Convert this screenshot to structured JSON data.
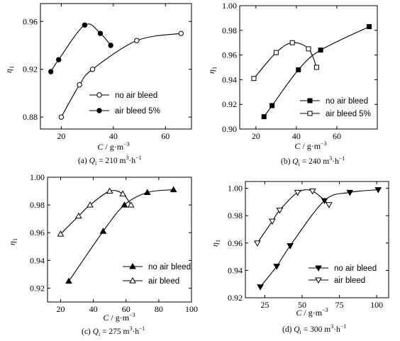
{
  "chart_data": [
    {
      "type": "line",
      "caption": "(a) Q_i = 210 m³·h⁻¹",
      "caption_parts": {
        "prefix": "(a) ",
        "var": "Q",
        "sub": "i",
        "value": " = 210 m",
        "unit_tail": "·h"
      },
      "xlabel": "C / g·m⁻³",
      "ylabel": "η₁",
      "xlim": [
        12,
        70
      ],
      "ylim": [
        0.87,
        0.975
      ],
      "xticks": [
        20,
        40,
        60
      ],
      "yticks": [
        0.88,
        0.92,
        0.96
      ],
      "ytick_labels": [
        "0.88",
        "0.92",
        "0.96"
      ],
      "legend_position": "lower-right",
      "series": [
        {
          "name": "no air bleed",
          "marker": "circle-open",
          "x": [
            20,
            27,
            32,
            49,
            66
          ],
          "y": [
            0.88,
            0.907,
            0.92,
            0.944,
            0.95
          ]
        },
        {
          "name": "air bleed 5%",
          "marker": "circle-filled",
          "x": [
            16,
            19,
            29,
            35,
            39
          ],
          "y": [
            0.918,
            0.928,
            0.957,
            0.95,
            0.94
          ]
        }
      ]
    },
    {
      "type": "line",
      "caption": "(b) Q_i = 240 m³·h⁻¹",
      "caption_parts": {
        "prefix": "(b) ",
        "var": "Q",
        "sub": "i",
        "value": " = 240 m",
        "unit_tail": "·h"
      },
      "xlabel": "C / g·m⁻³",
      "ylabel": "η₁",
      "xlim": [
        12,
        80
      ],
      "ylim": [
        0.9,
        1.0
      ],
      "xticks": [
        20,
        40,
        60
      ],
      "yticks": [
        0.9,
        0.92,
        0.94,
        0.96,
        0.98,
        1.0
      ],
      "ytick_labels": [
        "0.90",
        "0.92",
        "0.94",
        "0.96",
        "0.98",
        "1.00"
      ],
      "legend_position": "lower-right",
      "series": [
        {
          "name": "no air bleed",
          "marker": "square-filled",
          "x": [
            24,
            28,
            41,
            52,
            76
          ],
          "y": [
            0.91,
            0.919,
            0.948,
            0.964,
            0.983
          ]
        },
        {
          "name": "air bleed 5%",
          "marker": "square-open",
          "x": [
            19,
            30,
            38,
            46,
            50
          ],
          "y": [
            0.941,
            0.962,
            0.97,
            0.965,
            0.95
          ]
        }
      ]
    },
    {
      "type": "line",
      "caption": "(c) Q_i = 275 m³·h⁻¹",
      "caption_parts": {
        "prefix": "(c) ",
        "var": "Q",
        "sub": "i",
        "value": " = 275 m",
        "unit_tail": "·h"
      },
      "xlabel": "C / g·m⁻³",
      "ylabel": "η₁",
      "xlim": [
        12,
        100
      ],
      "ylim": [
        0.91,
        1.0
      ],
      "xticks": [
        20,
        40,
        60,
        80,
        100
      ],
      "yticks": [
        0.92,
        0.94,
        0.96,
        0.98,
        1.0
      ],
      "ytick_labels": [
        "0.92",
        "0.94",
        "0.96",
        "0.98",
        "1.00"
      ],
      "legend_position": "lower-right",
      "series": [
        {
          "name": "no air bleed",
          "marker": "triangle-filled",
          "x": [
            25,
            46,
            59,
            73,
            89
          ],
          "y": [
            0.925,
            0.961,
            0.98,
            0.989,
            0.991
          ]
        },
        {
          "name": "air bleed",
          "marker": "triangle-open",
          "x": [
            20,
            31,
            38,
            50,
            58,
            63
          ],
          "y": [
            0.959,
            0.972,
            0.98,
            0.99,
            0.988,
            0.98
          ]
        }
      ]
    },
    {
      "type": "line",
      "caption": "(d) Q_i = 300 m³·h⁻¹",
      "caption_parts": {
        "prefix": "(d) ",
        "var": "Q",
        "sub": "i",
        "value": " = 300 m",
        "unit_tail": "·h"
      },
      "xlabel": "C / g·m⁻³",
      "ylabel": "η₁",
      "xlim": [
        12,
        108
      ],
      "ylim": [
        0.92,
        1.005
      ],
      "xticks": [
        25,
        50,
        75,
        100
      ],
      "yticks": [
        0.92,
        0.94,
        0.96,
        0.98,
        1.0
      ],
      "ytick_labels": [
        "0.92",
        "0.94",
        "0.96",
        "0.98",
        "1.00"
      ],
      "legend_position": "lower-right",
      "series": [
        {
          "name": "no air bleed",
          "marker": "triangle-down-filled",
          "x": [
            22,
            33,
            42,
            65,
            82,
            101
          ],
          "y": [
            0.928,
            0.943,
            0.958,
            0.991,
            0.997,
            0.999
          ]
        },
        {
          "name": "air bleed",
          "marker": "triangle-down-open",
          "x": [
            20,
            30,
            35,
            47,
            57,
            68
          ],
          "y": [
            0.96,
            0.976,
            0.984,
            0.997,
            0.998,
            0.988
          ]
        }
      ]
    }
  ]
}
